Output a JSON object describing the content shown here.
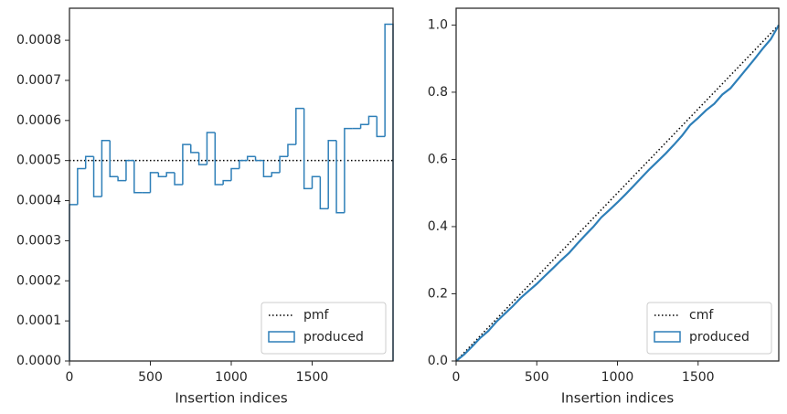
{
  "chart_data": [
    {
      "type": "histogram",
      "xlabel": "Insertion indices",
      "bins": [
        0,
        50,
        100,
        150,
        200,
        250,
        300,
        350,
        400,
        450,
        500,
        550,
        600,
        650,
        700,
        750,
        800,
        850,
        900,
        950,
        1000,
        1050,
        1100,
        1150,
        1200,
        1250,
        1300,
        1350,
        1400,
        1450,
        1500,
        1550,
        1600,
        1650,
        1700,
        1750,
        1800,
        1850,
        1900,
        1950,
        2000
      ],
      "values": [
        0.00039,
        0.00048,
        0.00051,
        0.00041,
        0.00055,
        0.00046,
        0.00045,
        0.0005,
        0.00042,
        0.00042,
        0.00047,
        0.00046,
        0.00047,
        0.00044,
        0.00054,
        0.00052,
        0.00049,
        0.00057,
        0.00044,
        0.00045,
        0.00048,
        0.0005,
        0.00051,
        0.0005,
        0.00046,
        0.00047,
        0.00051,
        0.00054,
        0.00063,
        0.00043,
        0.00046,
        0.00038,
        0.00055,
        0.00037,
        0.00058,
        0.00058,
        0.00059,
        0.00061,
        0.00056,
        0.00084
      ],
      "name": "produced",
      "color": "#2e7fb8",
      "reference": {
        "name": "pmf",
        "value": 0.0005,
        "color": "#000000"
      },
      "xlim": [
        0,
        2000
      ],
      "xticks": [
        0,
        500,
        1000,
        1500
      ],
      "ylim": [
        0,
        0.00088
      ],
      "yticks": [
        {
          "value": 0,
          "label": "0.0000"
        },
        {
          "value": 0.0001,
          "label": "0.0001"
        },
        {
          "value": 0.0002,
          "label": "0.0002"
        },
        {
          "value": 0.0003,
          "label": "0.0003"
        },
        {
          "value": 0.0004,
          "label": "0.0004"
        },
        {
          "value": 0.0005,
          "label": "0.0005"
        },
        {
          "value": 0.0006,
          "label": "0.0006"
        },
        {
          "value": 0.0007,
          "label": "0.0007"
        },
        {
          "value": 0.0008,
          "label": "0.0008"
        }
      ],
      "legend": "lower right"
    },
    {
      "type": "line",
      "xlabel": "Insertion indices",
      "x": [
        0,
        50,
        100,
        150,
        200,
        250,
        300,
        350,
        400,
        450,
        500,
        550,
        600,
        650,
        700,
        750,
        800,
        850,
        900,
        950,
        1000,
        1050,
        1100,
        1150,
        1200,
        1250,
        1300,
        1350,
        1400,
        1450,
        1500,
        1550,
        1600,
        1650,
        1700,
        1750,
        1800,
        1850,
        1900,
        1950,
        2000
      ],
      "series": [
        {
          "name": "cmf",
          "color": "#000000",
          "style": "dotted",
          "values": [
            0,
            0.025,
            0.05,
            0.075,
            0.1,
            0.125,
            0.15,
            0.175,
            0.2,
            0.225,
            0.25,
            0.275,
            0.3,
            0.325,
            0.35,
            0.375,
            0.4,
            0.425,
            0.45,
            0.475,
            0.5,
            0.525,
            0.55,
            0.575,
            0.6,
            0.625,
            0.65,
            0.675,
            0.7,
            0.725,
            0.75,
            0.775,
            0.8,
            0.825,
            0.85,
            0.875,
            0.9,
            0.925,
            0.95,
            0.975,
            1
          ]
        },
        {
          "name": "produced",
          "color": "#2e7fb8",
          "style": "solid",
          "values": [
            0,
            0.0195,
            0.0435,
            0.069,
            0.0895,
            0.117,
            0.14,
            0.1625,
            0.1875,
            0.2085,
            0.2295,
            0.253,
            0.276,
            0.2995,
            0.3215,
            0.3485,
            0.3745,
            0.399,
            0.4275,
            0.4495,
            0.472,
            0.496,
            0.521,
            0.5465,
            0.5715,
            0.5945,
            0.618,
            0.6435,
            0.6705,
            0.702,
            0.7235,
            0.7465,
            0.7655,
            0.793,
            0.8115,
            0.8405,
            0.8695,
            0.899,
            0.9295,
            0.9575,
            0.9995
          ]
        }
      ],
      "xlim": [
        0,
        2000
      ],
      "xticks": [
        0,
        500,
        1000,
        1500
      ],
      "ylim": [
        0,
        1.05
      ],
      "yticks": [
        {
          "value": 0,
          "label": "0.0"
        },
        {
          "value": 0.2,
          "label": "0.2"
        },
        {
          "value": 0.4,
          "label": "0.4"
        },
        {
          "value": 0.6,
          "label": "0.6"
        },
        {
          "value": 0.8,
          "label": "0.8"
        },
        {
          "value": 1,
          "label": "1.0"
        }
      ],
      "legend": "lower right"
    }
  ]
}
